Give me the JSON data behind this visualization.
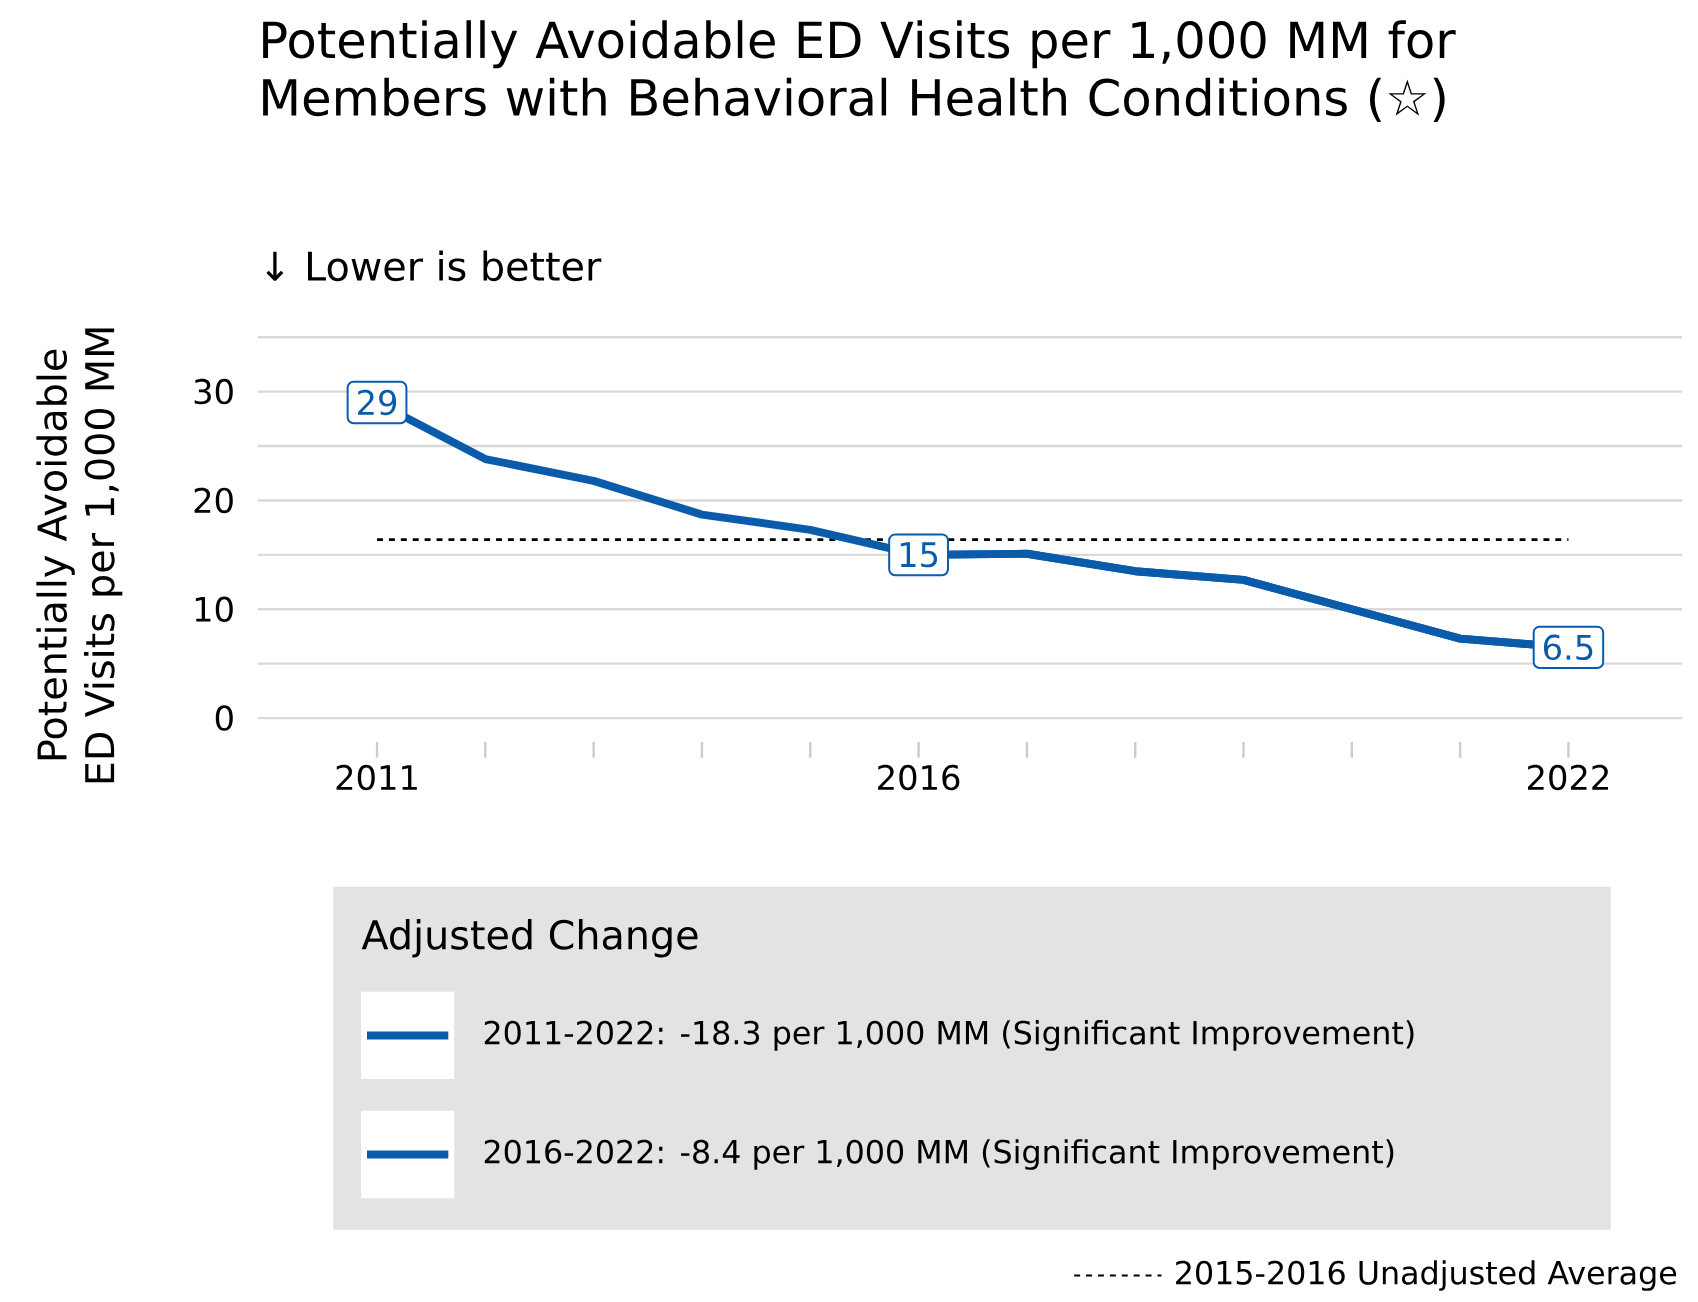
{
  "chart_data": {
    "type": "line",
    "title": "Potentially Avoidable ED Visits per 1,000 MM for Members with Behavioral Health Conditions (☆)",
    "subtitle": "↓ Lower is better",
    "ylabel": "Potentially Avoidable ED Visits per 1,000 MM",
    "legend_title": "Adjusted Change",
    "x": [
      2011,
      2012,
      2013,
      2014,
      2015,
      2016,
      2017,
      2018,
      2019,
      2020,
      2021,
      2022
    ],
    "series": [
      {
        "name": "2011-2022: -18.3 per 1,000 MM (Significant Improvement)",
        "color": "#0b5bab",
        "values": [
          29,
          23.8,
          21.8,
          18.7,
          17.3,
          15,
          15.1,
          13.5,
          12.7,
          10,
          7.3,
          6.5
        ],
        "value_labels": [
          "29",
          null,
          null,
          null,
          null,
          "15",
          null,
          null,
          null,
          null,
          null,
          "6.5"
        ]
      },
      {
        "name": "2016-2022: -8.4 per 1,000 MM (Significant Improvement)",
        "color": "#0b5bab",
        "values": [
          null,
          null,
          null,
          null,
          null,
          15,
          15.1,
          13.5,
          12.7,
          10,
          7.3,
          6.5
        ]
      }
    ],
    "xlim": [
      2009.9,
      2023.05
    ],
    "xticks": [
      2011,
      {
        "value": 2012,
        "label": null
      },
      {
        "value": 2013,
        "label": null
      },
      {
        "value": 2014,
        "label": null
      },
      {
        "value": 2015,
        "label": null
      },
      2016,
      {
        "value": 2017,
        "label": null
      },
      {
        "value": 2018,
        "label": null
      },
      {
        "value": 2019,
        "label": null
      },
      {
        "value": 2020,
        "label": null
      },
      {
        "value": 2021,
        "label": null
      },
      2022
    ],
    "ylim": [
      0,
      35
    ],
    "yticks": [
      0,
      {
        "value": 5,
        "label": null
      },
      10,
      {
        "value": 15,
        "label": null
      },
      20,
      {
        "value": 25,
        "label": null
      },
      30,
      {
        "value": 35,
        "label": null
      }
    ],
    "grid": "y",
    "legend": "bottom",
    "marker": "none",
    "line_style": "solid",
    "ref_lines": [
      {
        "axis": "y",
        "value": 16.4,
        "label": "2015-2016 Unadjusted Average",
        "color": "#000000",
        "line_style": "dashed"
      }
    ]
  }
}
